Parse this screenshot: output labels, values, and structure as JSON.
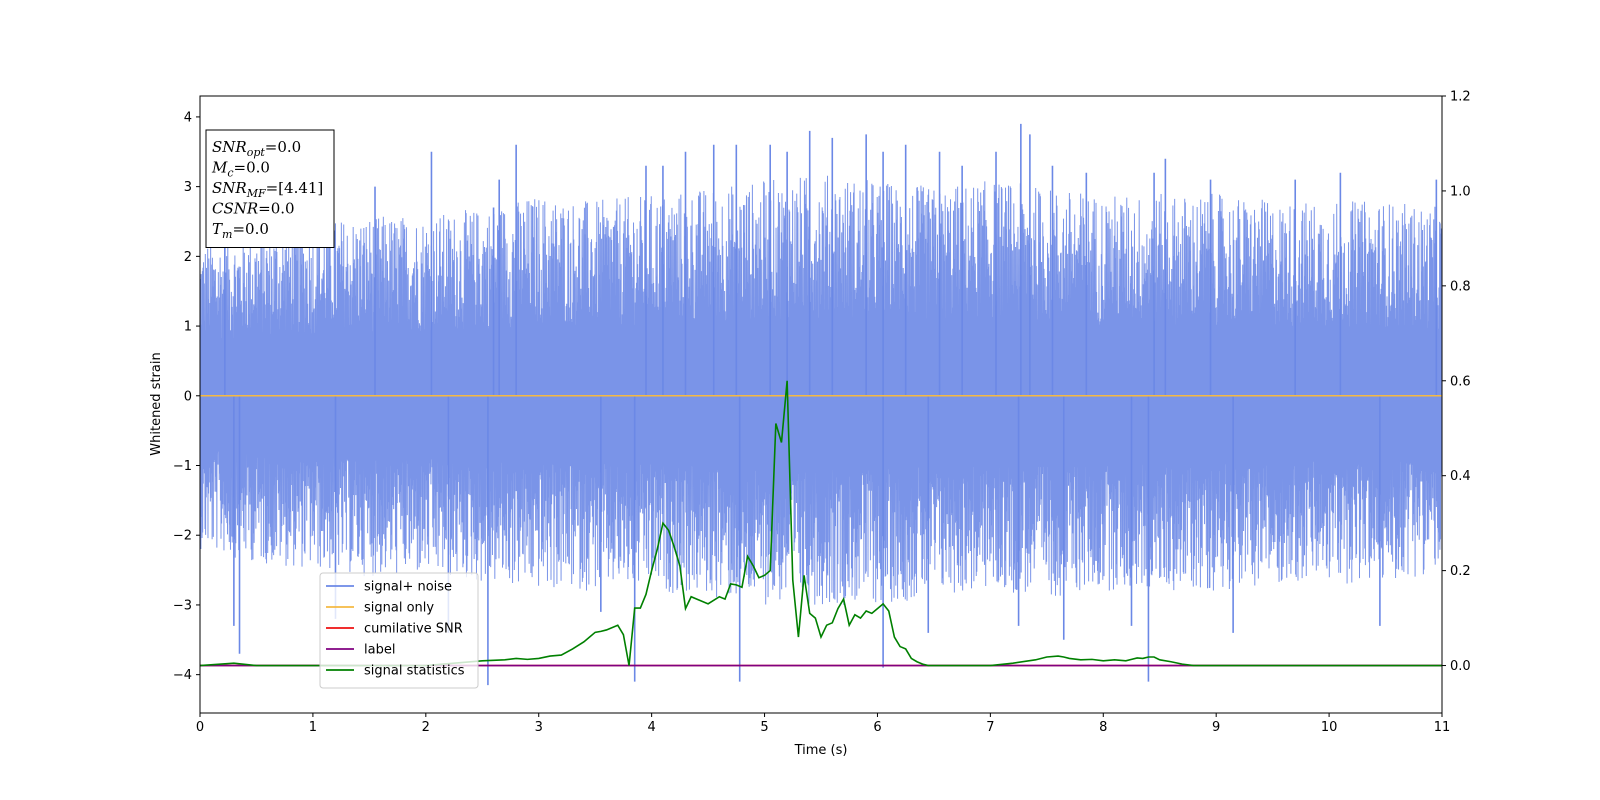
{
  "chart_data": {
    "type": "line",
    "title": "",
    "xlabel": "Time (s)",
    "ylabel": "Whitened strain",
    "y2label": "",
    "xlim": [
      0,
      11
    ],
    "ylim": [
      -4.55,
      4.3
    ],
    "y2lim": [
      -0.1,
      1.2
    ],
    "xticks": [
      "0",
      "1",
      "2",
      "3",
      "4",
      "5",
      "6",
      "7",
      "8",
      "9",
      "10",
      "11"
    ],
    "yticks": [
      "4",
      "3",
      "2",
      "1",
      "0",
      "−1",
      "−2",
      "−3",
      "−4"
    ],
    "y2ticks": [
      "1.2",
      "1.0",
      "0.8",
      "0.6",
      "0.4",
      "0.2",
      "0.0"
    ],
    "grid": false,
    "legend_position": "lower-left",
    "series": [
      {
        "name": "signal+ noise",
        "color": "#6b88e6",
        "axis": "left",
        "envelope_x": [
          0,
          0.5,
          1,
          1.5,
          2,
          2.5,
          3,
          3.5,
          4,
          4.5,
          5,
          5.5,
          6,
          6.5,
          7,
          7.5,
          8,
          8.5,
          9,
          9.5,
          10,
          10.5,
          11
        ],
        "envelope_upper": [
          2.2,
          2.4,
          2.5,
          2.6,
          2.6,
          2.7,
          2.9,
          2.8,
          2.9,
          3.0,
          3.1,
          3.2,
          3.1,
          3.0,
          3.1,
          3.0,
          2.9,
          2.9,
          2.9,
          2.8,
          2.8,
          2.8,
          2.7
        ],
        "envelope_lower": [
          -2.2,
          -2.4,
          -2.5,
          -2.6,
          -2.6,
          -2.7,
          -2.8,
          -2.8,
          -2.8,
          -2.9,
          -3.0,
          -3.0,
          -3.0,
          -2.9,
          -2.8,
          -2.9,
          -2.8,
          -2.8,
          -2.8,
          -2.7,
          -2.7,
          -2.7,
          -2.5
        ],
        "peaks": [
          [
            0.22,
            2.9
          ],
          [
            0.35,
            -3.7
          ],
          [
            0.3,
            -3.3
          ],
          [
            1.2,
            -3.2
          ],
          [
            1.55,
            3.0
          ],
          [
            2.05,
            3.5
          ],
          [
            2.2,
            -3.4
          ],
          [
            2.55,
            -4.15
          ],
          [
            2.6,
            2.7
          ],
          [
            2.65,
            3.1
          ],
          [
            2.8,
            3.6
          ],
          [
            3.55,
            -3.1
          ],
          [
            3.85,
            -4.1
          ],
          [
            3.95,
            3.3
          ],
          [
            4.1,
            3.3
          ],
          [
            4.3,
            3.5
          ],
          [
            4.55,
            3.6
          ],
          [
            4.78,
            -4.1
          ],
          [
            4.75,
            3.6
          ],
          [
            5.05,
            3.6
          ],
          [
            5.2,
            3.5
          ],
          [
            5.4,
            3.8
          ],
          [
            5.6,
            3.7
          ],
          [
            5.9,
            3.75
          ],
          [
            6.05,
            -3.9
          ],
          [
            6.05,
            3.5
          ],
          [
            6.25,
            3.6
          ],
          [
            6.45,
            -3.4
          ],
          [
            6.55,
            3.5
          ],
          [
            6.75,
            3.3
          ],
          [
            7.05,
            3.5
          ],
          [
            7.27,
            3.9
          ],
          [
            7.35,
            3.75
          ],
          [
            7.25,
            -3.3
          ],
          [
            7.55,
            3.3
          ],
          [
            7.65,
            -3.5
          ],
          [
            7.85,
            3.2
          ],
          [
            8.25,
            -3.3
          ],
          [
            8.4,
            -4.1
          ],
          [
            8.45,
            3.2
          ],
          [
            8.55,
            3.4
          ],
          [
            8.95,
            3.1
          ],
          [
            9.15,
            -3.4
          ],
          [
            9.7,
            3.1
          ],
          [
            10.1,
            3.2
          ],
          [
            10.45,
            -3.3
          ],
          [
            10.95,
            3.1
          ]
        ]
      },
      {
        "name": "signal only",
        "color": "#f5b942",
        "axis": "left",
        "x": [
          0,
          11
        ],
        "y": [
          0.0,
          0.0
        ]
      },
      {
        "name": "cumilative SNR",
        "color": "#ee1111",
        "axis": "right",
        "x": [
          0,
          11
        ],
        "y": [
          0.0,
          0.0
        ]
      },
      {
        "name": "label",
        "color": "#800080",
        "axis": "right",
        "x": [
          0,
          11
        ],
        "y": [
          0.0,
          0.0
        ]
      },
      {
        "name": "signal statistics",
        "color": "#008000",
        "axis": "right",
        "x": [
          0,
          0.3,
          0.5,
          1.0,
          2.0,
          2.5,
          2.7,
          2.8,
          2.9,
          3.0,
          3.1,
          3.2,
          3.3,
          3.4,
          3.5,
          3.55,
          3.6,
          3.7,
          3.75,
          3.8,
          3.85,
          3.9,
          3.95,
          4.0,
          4.05,
          4.1,
          4.15,
          4.2,
          4.25,
          4.3,
          4.35,
          4.4,
          4.5,
          4.6,
          4.65,
          4.7,
          4.75,
          4.8,
          4.85,
          4.9,
          4.95,
          5.0,
          5.05,
          5.1,
          5.15,
          5.2,
          5.25,
          5.3,
          5.35,
          5.4,
          5.45,
          5.5,
          5.55,
          5.6,
          5.65,
          5.7,
          5.75,
          5.8,
          5.85,
          5.9,
          5.95,
          6.0,
          6.05,
          6.1,
          6.15,
          6.2,
          6.25,
          6.3,
          6.35,
          6.4,
          6.45,
          6.5,
          6.55,
          6.6,
          6.65,
          6.7,
          7.0,
          7.2,
          7.4,
          7.5,
          7.6,
          7.65,
          7.7,
          7.8,
          7.9,
          8.0,
          8.1,
          8.2,
          8.25,
          8.3,
          8.35,
          8.4,
          8.45,
          8.5,
          8.6,
          8.7,
          8.8,
          9.0,
          11.0
        ],
        "y": [
          0.0,
          0.005,
          0.0,
          0.0,
          0.0,
          0.01,
          0.012,
          0.015,
          0.013,
          0.015,
          0.02,
          0.022,
          0.035,
          0.05,
          0.07,
          0.072,
          0.075,
          0.085,
          0.065,
          0.0,
          0.121,
          0.121,
          0.15,
          0.2,
          0.245,
          0.3,
          0.285,
          0.25,
          0.21,
          0.12,
          0.145,
          0.14,
          0.13,
          0.145,
          0.14,
          0.172,
          0.17,
          0.165,
          0.23,
          0.21,
          0.185,
          0.19,
          0.2,
          0.51,
          0.47,
          0.6,
          0.18,
          0.06,
          0.19,
          0.11,
          0.1,
          0.06,
          0.085,
          0.09,
          0.12,
          0.14,
          0.085,
          0.107,
          0.1,
          0.115,
          0.11,
          0.12,
          0.13,
          0.115,
          0.06,
          0.04,
          0.035,
          0.015,
          0.008,
          0.003,
          0.0,
          0.0,
          0.0,
          0.0,
          0.0,
          0.0,
          0.0,
          0.005,
          0.012,
          0.018,
          0.02,
          0.018,
          0.015,
          0.012,
          0.013,
          0.01,
          0.012,
          0.01,
          0.013,
          0.016,
          0.015,
          0.018,
          0.018,
          0.012,
          0.008,
          0.003,
          0.0,
          0.0,
          0.0
        ]
      }
    ],
    "annotation": {
      "lines": [
        {
          "base": "SNR",
          "sub": "opt",
          "value": "=0.0"
        },
        {
          "base": "M",
          "sub": "c",
          "value": "=0.0"
        },
        {
          "base": "SNR",
          "sub": "MF",
          "value": "=[4.41]"
        },
        {
          "base": "CSNR",
          "sub": "",
          "value": "=0.0"
        },
        {
          "base": "T",
          "sub": "m",
          "value": "=0.0"
        }
      ]
    }
  }
}
